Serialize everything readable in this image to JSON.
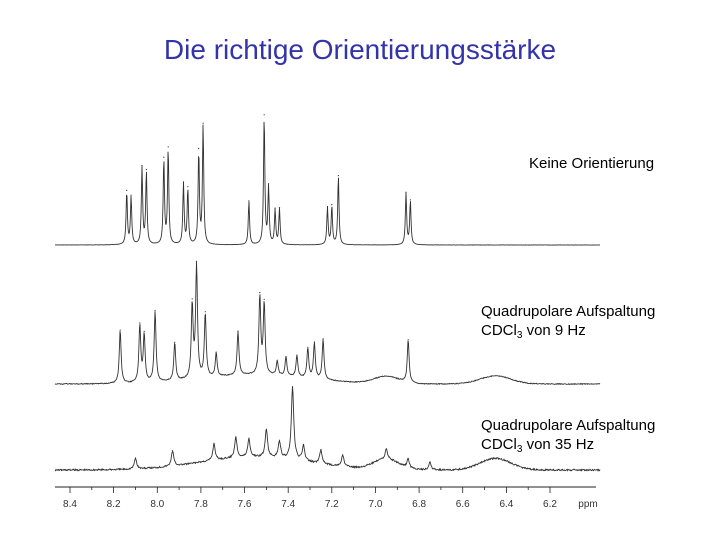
{
  "slide": {
    "title": "Die richtige Orientierungsstärke"
  },
  "labels": {
    "spectrum1": "Keine Orientierung",
    "spectrum2_line1": "Quadrupolare Aufspaltung",
    "spectrum2_prefix": "CDCl",
    "spectrum2_sub": "3",
    "spectrum2_suffix": " von 9 Hz",
    "spectrum3_line1": "Quadrupolare Aufspaltung",
    "spectrum3_prefix": "CDCl",
    "spectrum3_sub": "3",
    "spectrum3_suffix": " von 35 Hz"
  },
  "chart_data": {
    "type": "line",
    "x_axis": {
      "unit": "ppm",
      "reversed": true,
      "range": [
        8.5,
        6.0
      ],
      "tick_labels": [
        "8.4",
        "8.2",
        "8.0",
        "7.8",
        "7.6",
        "7.4",
        "7.2",
        "7.0",
        "6.8",
        "6.6",
        "6.4",
        "6.2"
      ]
    },
    "grid": false,
    "series": [
      {
        "name": "Keine Orientierung",
        "peaks": [
          {
            "ppm": 8.14,
            "rel_height": 0.4
          },
          {
            "ppm": 8.12,
            "rel_height": 0.36
          },
          {
            "ppm": 8.07,
            "rel_height": 0.58
          },
          {
            "ppm": 8.05,
            "rel_height": 0.55
          },
          {
            "ppm": 7.97,
            "rel_height": 0.64
          },
          {
            "ppm": 7.95,
            "rel_height": 0.72
          },
          {
            "ppm": 7.88,
            "rel_height": 0.46
          },
          {
            "ppm": 7.86,
            "rel_height": 0.42
          },
          {
            "ppm": 7.81,
            "rel_height": 0.7
          },
          {
            "ppm": 7.79,
            "rel_height": 0.9
          },
          {
            "ppm": 7.58,
            "rel_height": 0.33
          },
          {
            "ppm": 7.51,
            "rel_height": 0.97
          },
          {
            "ppm": 7.49,
            "rel_height": 0.43
          },
          {
            "ppm": 7.46,
            "rel_height": 0.26
          },
          {
            "ppm": 7.44,
            "rel_height": 0.27
          },
          {
            "ppm": 7.22,
            "rel_height": 0.28
          },
          {
            "ppm": 7.2,
            "rel_height": 0.29
          },
          {
            "ppm": 7.17,
            "rel_height": 0.52
          },
          {
            "ppm": 6.86,
            "rel_height": 0.39
          },
          {
            "ppm": 6.84,
            "rel_height": 0.33
          }
        ]
      },
      {
        "name": "Quadrupolare Aufspaltung CDCl3 von 9 Hz",
        "peaks": [
          {
            "ppm": 8.17,
            "rel_height": 0.45
          },
          {
            "ppm": 8.08,
            "rel_height": 0.48
          },
          {
            "ppm": 8.06,
            "rel_height": 0.4
          },
          {
            "ppm": 8.01,
            "rel_height": 0.6
          },
          {
            "ppm": 7.92,
            "rel_height": 0.32
          },
          {
            "ppm": 7.84,
            "rel_height": 0.62
          },
          {
            "ppm": 7.82,
            "rel_height": 0.95
          },
          {
            "ppm": 7.78,
            "rel_height": 0.54
          },
          {
            "ppm": 7.73,
            "rel_height": 0.2
          },
          {
            "ppm": 7.63,
            "rel_height": 0.37
          },
          {
            "ppm": 7.53,
            "rel_height": 0.66
          },
          {
            "ppm": 7.51,
            "rel_height": 0.6
          },
          {
            "ppm": 7.45,
            "rel_height": 0.12
          },
          {
            "ppm": 7.41,
            "rel_height": 0.16
          },
          {
            "ppm": 7.36,
            "rel_height": 0.18
          },
          {
            "ppm": 7.31,
            "rel_height": 0.25
          },
          {
            "ppm": 7.28,
            "rel_height": 0.3
          },
          {
            "ppm": 7.24,
            "rel_height": 0.34
          },
          {
            "ppm": 6.85,
            "rel_height": 0.36
          }
        ]
      },
      {
        "name": "Quadrupolare Aufspaltung CDCl3 von 35 Hz",
        "peaks": [
          {
            "ppm": 8.1,
            "rel_height": 0.14
          },
          {
            "ppm": 7.93,
            "rel_height": 0.2
          },
          {
            "ppm": 7.74,
            "rel_height": 0.22
          },
          {
            "ppm": 7.64,
            "rel_height": 0.27
          },
          {
            "ppm": 7.58,
            "rel_height": 0.24
          },
          {
            "ppm": 7.5,
            "rel_height": 0.36
          },
          {
            "ppm": 7.44,
            "rel_height": 0.22
          },
          {
            "ppm": 7.38,
            "rel_height": 0.95
          },
          {
            "ppm": 7.33,
            "rel_height": 0.2
          },
          {
            "ppm": 7.25,
            "rel_height": 0.18
          },
          {
            "ppm": 7.15,
            "rel_height": 0.15
          },
          {
            "ppm": 6.95,
            "rel_height": 0.13
          },
          {
            "ppm": 6.85,
            "rel_height": 0.12
          },
          {
            "ppm": 6.75,
            "rel_height": 0.1
          }
        ]
      }
    ]
  }
}
